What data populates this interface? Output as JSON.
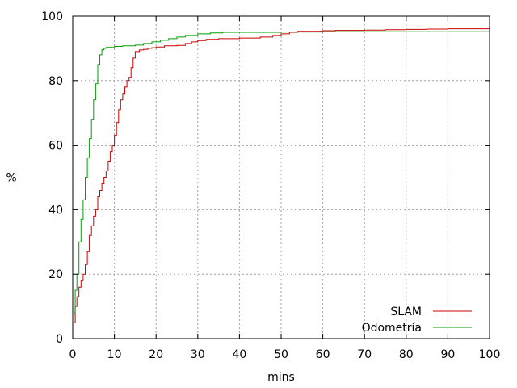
{
  "chart_data": {
    "type": "line",
    "xlabel": "mins",
    "ylabel": "%",
    "xlim": [
      0,
      100
    ],
    "ylim": [
      0,
      100
    ],
    "xticks": [
      0,
      10,
      20,
      30,
      40,
      50,
      60,
      70,
      80,
      90,
      100
    ],
    "yticks": [
      0,
      20,
      40,
      60,
      80,
      100
    ],
    "grid": true,
    "legend_position": "bottom-right",
    "series": [
      {
        "name": "SLAM",
        "color": "#cc0000",
        "points": [
          [
            0,
            0
          ],
          [
            0.3,
            5
          ],
          [
            0.6,
            10
          ],
          [
            1.0,
            13
          ],
          [
            1.5,
            16
          ],
          [
            2.0,
            18
          ],
          [
            2.5,
            20
          ],
          [
            3.0,
            23
          ],
          [
            3.5,
            27
          ],
          [
            4.0,
            32
          ],
          [
            4.5,
            35
          ],
          [
            5.0,
            38
          ],
          [
            5.5,
            40
          ],
          [
            6.0,
            44
          ],
          [
            6.5,
            46
          ],
          [
            7.0,
            48
          ],
          [
            7.5,
            50
          ],
          [
            8.0,
            52
          ],
          [
            8.5,
            55
          ],
          [
            9.0,
            58
          ],
          [
            9.5,
            60
          ],
          [
            10.0,
            63
          ],
          [
            10.5,
            67
          ],
          [
            11.0,
            71
          ],
          [
            11.5,
            74
          ],
          [
            12.0,
            76
          ],
          [
            12.5,
            78
          ],
          [
            13.0,
            80
          ],
          [
            13.5,
            81
          ],
          [
            14.0,
            84
          ],
          [
            14.5,
            87
          ],
          [
            15.0,
            89
          ],
          [
            16.0,
            89.5
          ],
          [
            17.0,
            89.7
          ],
          [
            18.0,
            90
          ],
          [
            19.0,
            90.2
          ],
          [
            20.0,
            90.4
          ],
          [
            22.0,
            90.8
          ],
          [
            25.0,
            90.9
          ],
          [
            27.0,
            91.5
          ],
          [
            28.5,
            92
          ],
          [
            30.0,
            92.4
          ],
          [
            32.0,
            92.8
          ],
          [
            35.0,
            93
          ],
          [
            40.0,
            93.2
          ],
          [
            45.0,
            93.5
          ],
          [
            48.0,
            94
          ],
          [
            50.0,
            94.5
          ],
          [
            52.0,
            95
          ],
          [
            54.0,
            95.3
          ],
          [
            60.0,
            95.5
          ],
          [
            63.0,
            95.6
          ],
          [
            70.0,
            95.7
          ],
          [
            75.0,
            95.8
          ],
          [
            80.0,
            95.9
          ],
          [
            85.0,
            96
          ],
          [
            90.0,
            96.1
          ],
          [
            100.0,
            96.1
          ]
        ]
      },
      {
        "name": "Odometría",
        "color": "#00a000",
        "points": [
          [
            0,
            0
          ],
          [
            0.3,
            8
          ],
          [
            0.6,
            15
          ],
          [
            1.0,
            20
          ],
          [
            1.5,
            30
          ],
          [
            2.0,
            37
          ],
          [
            2.5,
            43
          ],
          [
            3.0,
            50
          ],
          [
            3.5,
            56
          ],
          [
            4.0,
            62
          ],
          [
            4.5,
            68
          ],
          [
            5.0,
            74
          ],
          [
            5.5,
            79
          ],
          [
            6.0,
            85
          ],
          [
            6.5,
            88
          ],
          [
            7.0,
            89.5
          ],
          [
            7.5,
            90
          ],
          [
            8.0,
            90.3
          ],
          [
            10.0,
            90.6
          ],
          [
            12.0,
            90.8
          ],
          [
            15.0,
            91
          ],
          [
            17.0,
            91.5
          ],
          [
            19.0,
            92
          ],
          [
            21.0,
            92.5
          ],
          [
            23.0,
            93
          ],
          [
            25.0,
            93.5
          ],
          [
            27.0,
            94
          ],
          [
            30.0,
            94.5
          ],
          [
            33.0,
            94.8
          ],
          [
            36.0,
            95
          ],
          [
            50.0,
            95.1
          ],
          [
            60.0,
            95.2
          ],
          [
            100.0,
            95.2
          ]
        ]
      }
    ]
  }
}
